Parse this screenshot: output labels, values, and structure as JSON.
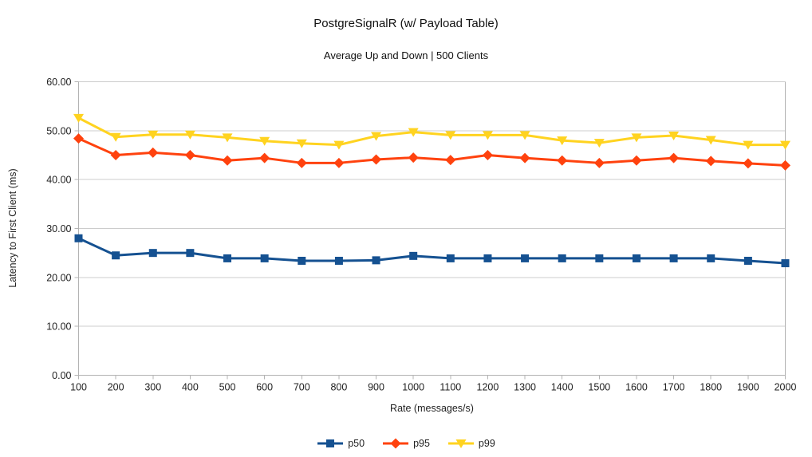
{
  "page": {
    "background": "#ffffff"
  },
  "chart_data": {
    "type": "line",
    "title": "PostgreSignalR (w/ Payload Table)",
    "subtitle": "Average Up and Down | 500 Clients",
    "xlabel": "Rate (messages/s)",
    "ylabel": "Latency to First Client (ms)",
    "x": [
      100,
      200,
      300,
      400,
      500,
      600,
      700,
      800,
      900,
      1000,
      1100,
      1200,
      1300,
      1400,
      1500,
      1600,
      1700,
      1800,
      1900,
      2000
    ],
    "ylim": [
      0,
      60
    ],
    "yticks": [
      {
        "value": 0,
        "label": "0.00"
      },
      {
        "value": 10,
        "label": "10.00"
      },
      {
        "value": 20,
        "label": "20.00"
      },
      {
        "value": 30,
        "label": "30.00"
      },
      {
        "value": 40,
        "label": "40.00"
      },
      {
        "value": 50,
        "label": "50.00"
      },
      {
        "value": 60,
        "label": "60.00"
      }
    ],
    "grid": "horizontal-only",
    "legend_position": "bottom-center",
    "series": [
      {
        "name": "p50",
        "marker": "square",
        "color": "#155191",
        "values": [
          28.0,
          24.5,
          25.0,
          25.0,
          23.9,
          23.9,
          23.4,
          23.4,
          23.5,
          24.4,
          23.9,
          23.9,
          23.9,
          23.9,
          23.9,
          23.9,
          23.9,
          23.9,
          23.4,
          22.9
        ]
      },
      {
        "name": "p95",
        "marker": "diamond",
        "color": "#ff420e",
        "values": [
          48.4,
          45.0,
          45.5,
          45.0,
          43.9,
          44.4,
          43.4,
          43.4,
          44.1,
          44.5,
          44.0,
          45.0,
          44.4,
          43.9,
          43.4,
          43.9,
          44.4,
          43.8,
          43.3,
          42.9
        ]
      },
      {
        "name": "p99",
        "marker": "triangle-down",
        "color": "#ffd320",
        "values": [
          52.6,
          48.7,
          49.2,
          49.2,
          48.6,
          47.9,
          47.4,
          47.1,
          48.9,
          49.7,
          49.1,
          49.1,
          49.1,
          48.0,
          47.5,
          48.6,
          49.0,
          48.1,
          47.1,
          47.1
        ]
      }
    ],
    "colors": {
      "grid": "#cccccc",
      "axis": "#b3b3b3",
      "text": "#222222"
    }
  }
}
